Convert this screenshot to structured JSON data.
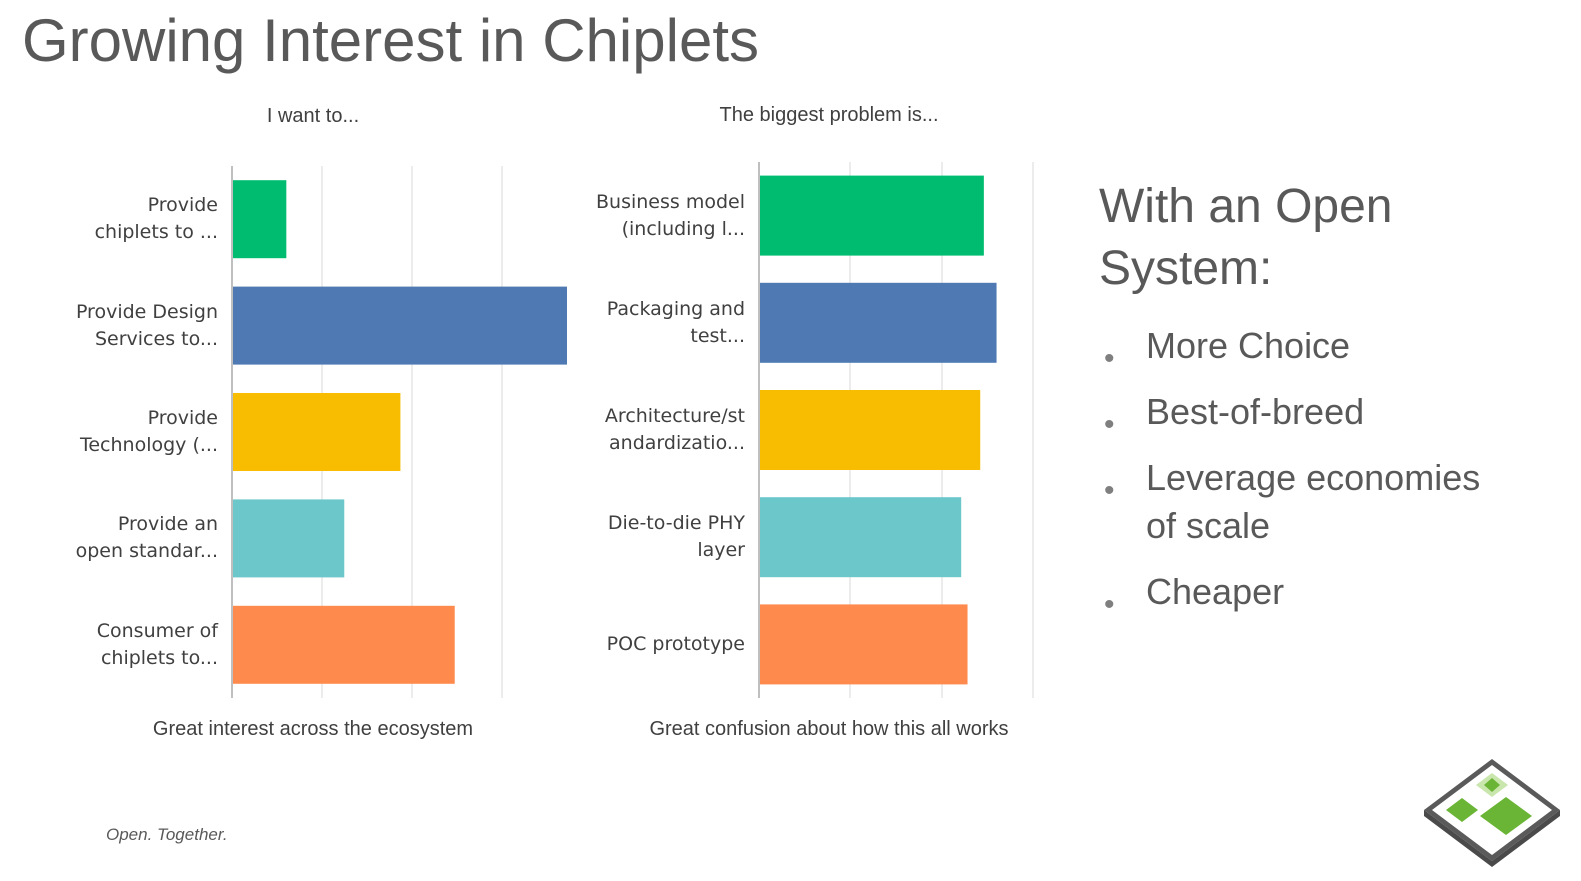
{
  "slide": {
    "title": "Growing Interest in Chiplets",
    "footer": "Open. Together."
  },
  "chart_data": [
    {
      "type": "bar",
      "orientation": "horizontal",
      "title": "I want to...",
      "caption": "Great interest across the ecosystem",
      "categories": [
        [
          "Provide",
          "chiplets to ..."
        ],
        [
          "Provide Design",
          "Services to..."
        ],
        [
          "Provide",
          "Technology (..."
        ],
        [
          "Provide an",
          "open standar..."
        ],
        [
          "Consumer of",
          "chiplets to..."
        ]
      ],
      "values": [
        6,
        37,
        18.6,
        12.4,
        24.6
      ],
      "colors": [
        "#00bc70",
        "#4f79b3",
        "#f8bd00",
        "#6bc7c9",
        "#ff8a4e"
      ],
      "xlim": [
        0,
        37
      ],
      "grid": true
    },
    {
      "type": "bar",
      "orientation": "horizontal",
      "title": "The biggest problem is...",
      "caption": "Great confusion about how this all works",
      "categories": [
        [
          "Business model",
          "(including l..."
        ],
        [
          "Packaging and",
          "test..."
        ],
        [
          "Architecture/st",
          "andardizatio..."
        ],
        [
          "Die-to-die PHY",
          "layer"
        ],
        [
          "POC prototype"
        ]
      ],
      "values": [
        24.8,
        26.2,
        24.4,
        22.3,
        23
      ],
      "colors": [
        "#00bc70",
        "#4f79b3",
        "#f8bd00",
        "#6bc7c9",
        "#ff8a4e"
      ],
      "xlim": [
        0,
        30
      ],
      "grid": true
    }
  ],
  "side_panel": {
    "heading_line1": "With an Open",
    "heading_line2": "System:",
    "bullets": [
      "More Choice",
      "Best-of-breed",
      "Leverage economies of scale",
      "Cheaper"
    ],
    "bullet_glyph": "•"
  },
  "logo": {
    "icon": "chiplet-logo-icon",
    "colors": [
      "#6bb536",
      "#a8d77f",
      "#5a5a5a"
    ]
  }
}
